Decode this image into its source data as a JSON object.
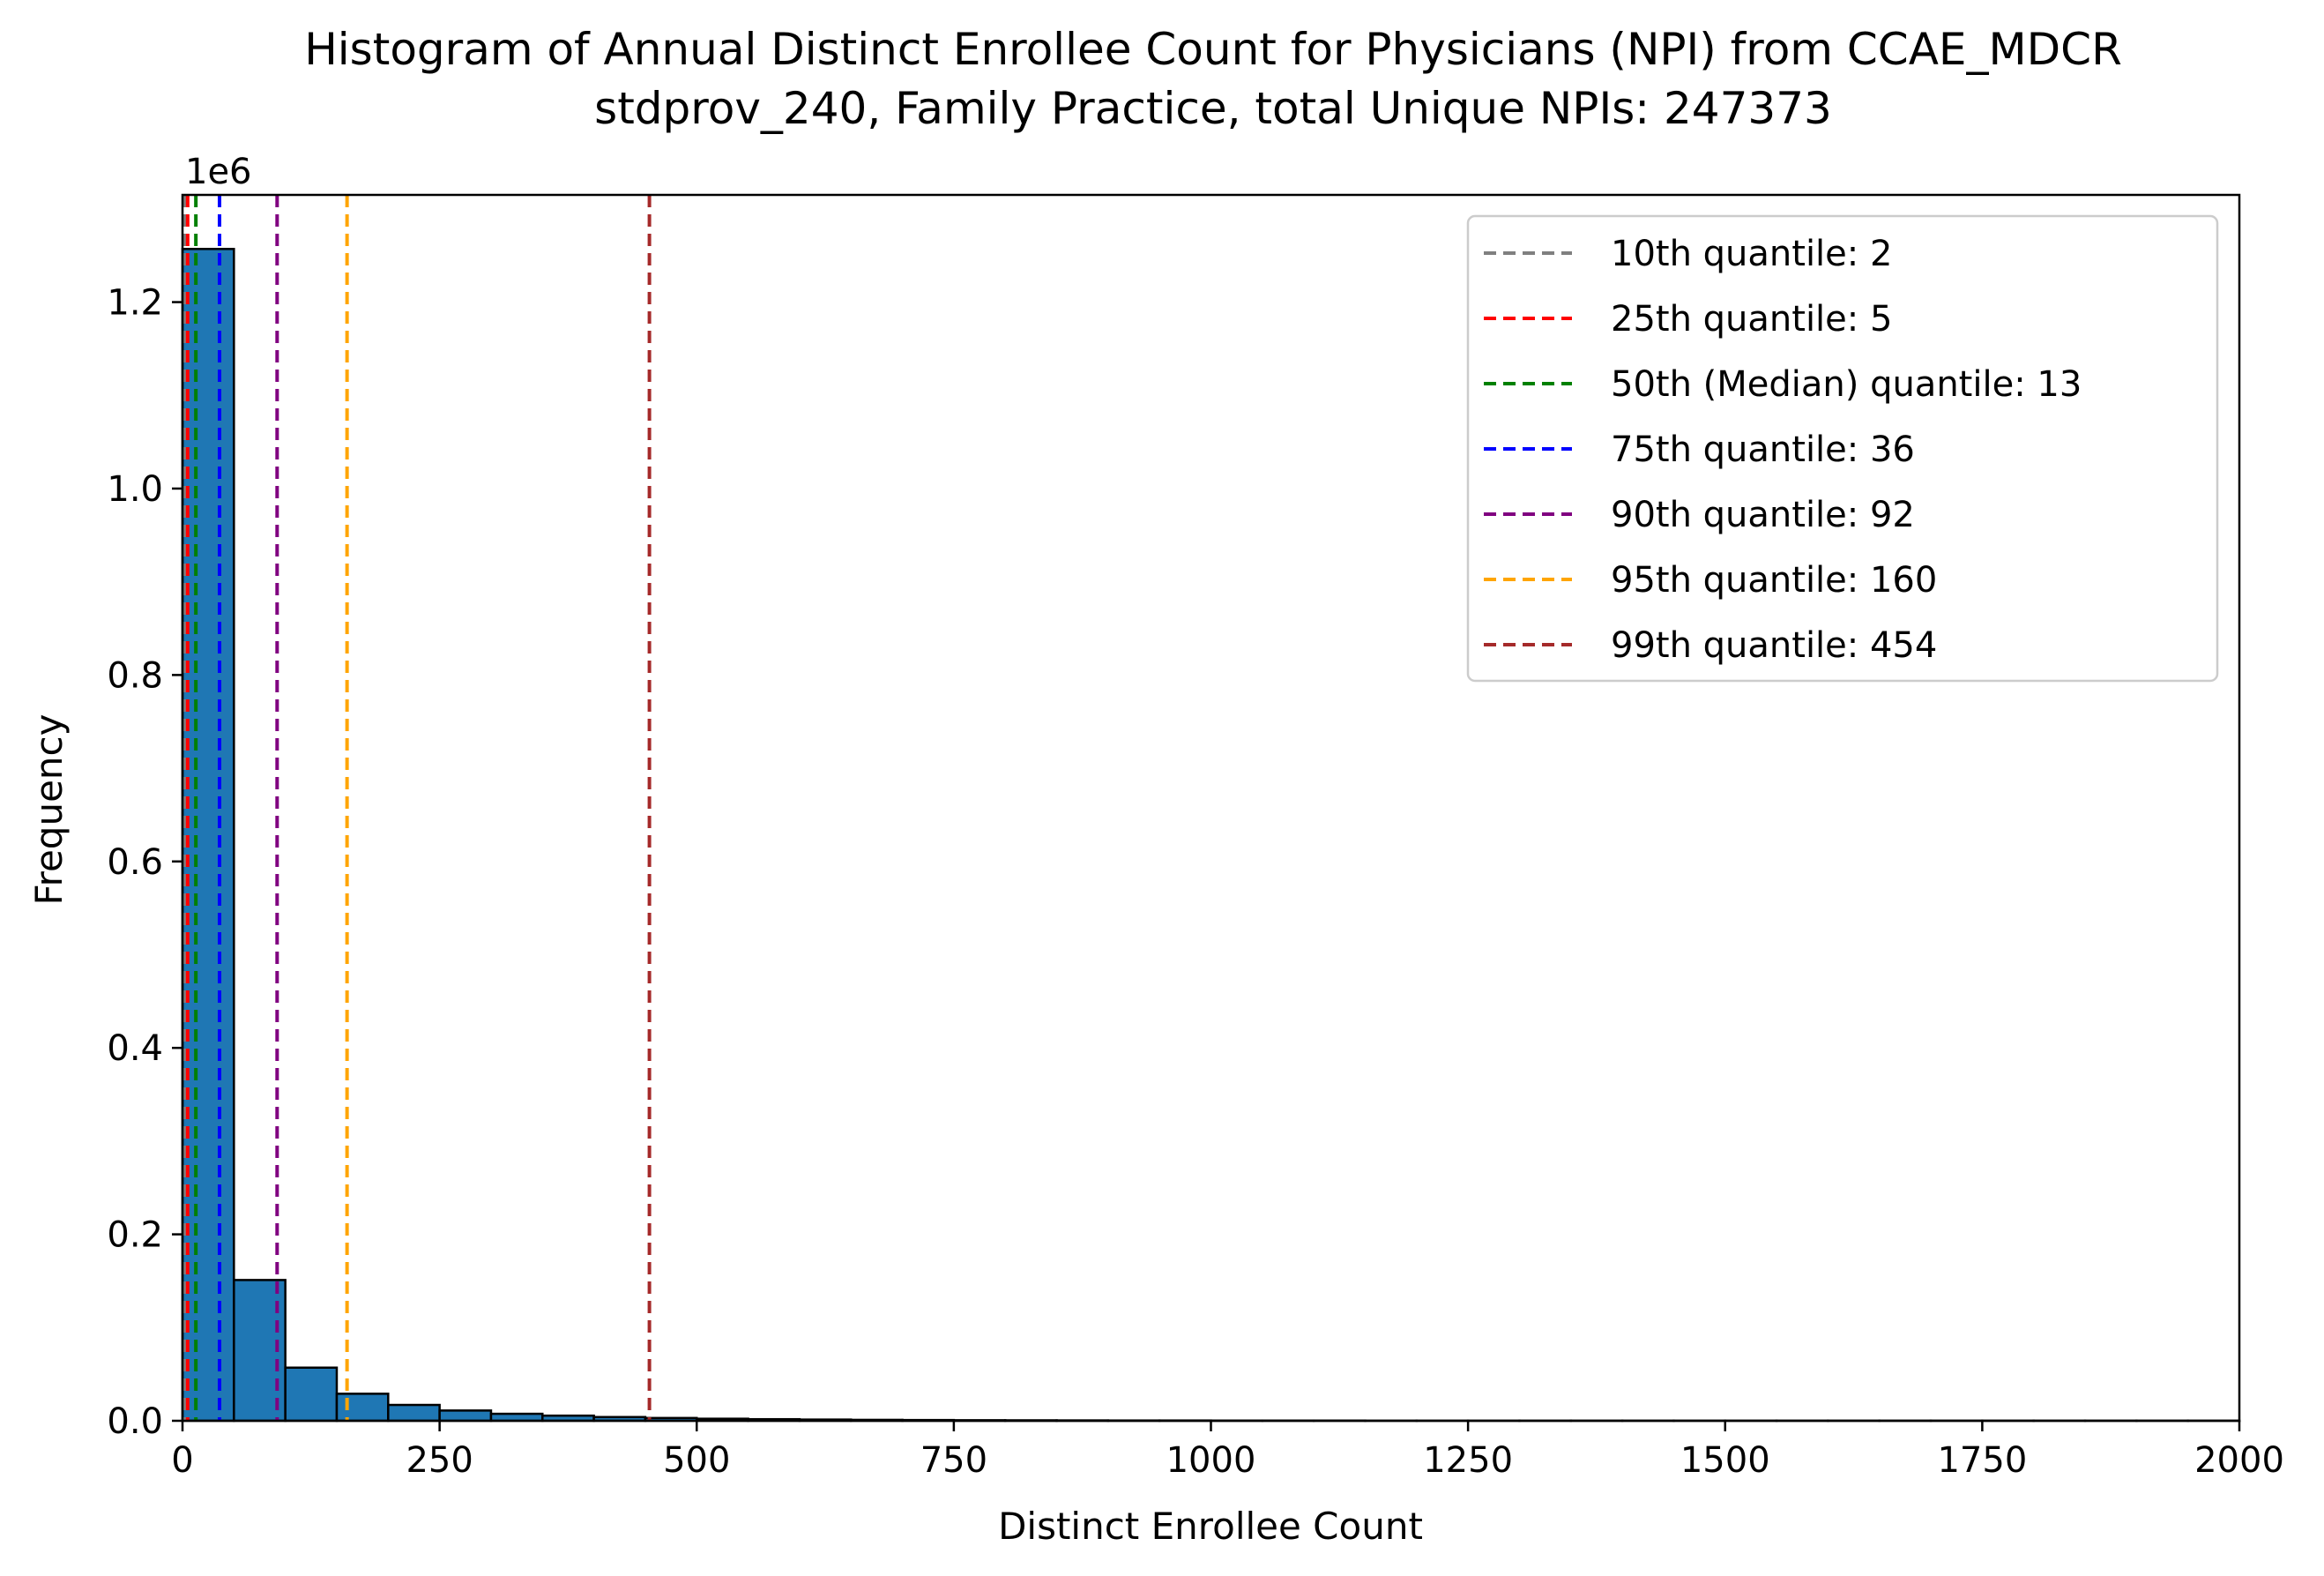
{
  "chart_data": {
    "type": "bar",
    "title_lines": [
      "Histogram of Annual Distinct Enrollee Count for Physicians (NPI) from CCAE_MDCR",
      "stdprov_240, Family Practice, total Unique NPIs: 247373"
    ],
    "xlabel": "Distinct Enrollee Count",
    "ylabel": "Frequency",
    "y_offset_label": "1e6",
    "xlim": [
      0,
      2000
    ],
    "ylim": [
      0,
      1.315
    ],
    "y_scale_factor": 1000000,
    "x_ticks": [
      0,
      250,
      500,
      750,
      1000,
      1250,
      1500,
      1750,
      2000
    ],
    "x_tick_labels": [
      "0",
      "250",
      "500",
      "750",
      "1000",
      "1250",
      "1500",
      "1750",
      "2000"
    ],
    "y_ticks": [
      0.0,
      0.2,
      0.4,
      0.6,
      0.8,
      1.0,
      1.2
    ],
    "y_tick_labels": [
      "0.0",
      "0.2",
      "0.4",
      "0.6",
      "0.8",
      "1.0",
      "1.2"
    ],
    "grid": false,
    "legend_position": "top-right",
    "bins": [
      {
        "x0": 0,
        "x1": 50,
        "value": 1.257
      },
      {
        "x0": 50,
        "x1": 100,
        "value": 0.151
      },
      {
        "x0": 100,
        "x1": 150,
        "value": 0.057
      },
      {
        "x0": 150,
        "x1": 200,
        "value": 0.029
      },
      {
        "x0": 200,
        "x1": 250,
        "value": 0.017
      },
      {
        "x0": 250,
        "x1": 300,
        "value": 0.011
      },
      {
        "x0": 300,
        "x1": 350,
        "value": 0.0075
      },
      {
        "x0": 350,
        "x1": 400,
        "value": 0.0055
      },
      {
        "x0": 400,
        "x1": 450,
        "value": 0.004
      },
      {
        "x0": 450,
        "x1": 500,
        "value": 0.003
      },
      {
        "x0": 500,
        "x1": 550,
        "value": 0.0022
      },
      {
        "x0": 550,
        "x1": 600,
        "value": 0.0017
      },
      {
        "x0": 600,
        "x1": 650,
        "value": 0.0013
      },
      {
        "x0": 650,
        "x1": 700,
        "value": 0.001
      },
      {
        "x0": 700,
        "x1": 750,
        "value": 0.0008
      },
      {
        "x0": 750,
        "x1": 800,
        "value": 0.0006
      },
      {
        "x0": 800,
        "x1": 850,
        "value": 0.0005
      },
      {
        "x0": 850,
        "x1": 900,
        "value": 0.0004
      },
      {
        "x0": 900,
        "x1": 950,
        "value": 0.0003
      },
      {
        "x0": 950,
        "x1": 1000,
        "value": 0.0003
      },
      {
        "x0": 1000,
        "x1": 1050,
        "value": 0.0002
      },
      {
        "x0": 1050,
        "x1": 1100,
        "value": 0.0002
      },
      {
        "x0": 1100,
        "x1": 1150,
        "value": 0.0002
      },
      {
        "x0": 1150,
        "x1": 1200,
        "value": 0.0001
      },
      {
        "x0": 1200,
        "x1": 1250,
        "value": 0.0001
      },
      {
        "x0": 1250,
        "x1": 1300,
        "value": 0.0001
      },
      {
        "x0": 1300,
        "x1": 1350,
        "value": 0.0001
      },
      {
        "x0": 1350,
        "x1": 1400,
        "value": 0.0001
      },
      {
        "x0": 1400,
        "x1": 1450,
        "value": 0.0001
      },
      {
        "x0": 1450,
        "x1": 1500,
        "value": 0.0001
      },
      {
        "x0": 1500,
        "x1": 1550,
        "value": 0.0001
      },
      {
        "x0": 1550,
        "x1": 1600,
        "value": 0.0001
      },
      {
        "x0": 1600,
        "x1": 1650,
        "value": 0.0001
      },
      {
        "x0": 1650,
        "x1": 1700,
        "value": 0.0001
      },
      {
        "x0": 1700,
        "x1": 1750,
        "value": 0.0001
      },
      {
        "x0": 1750,
        "x1": 1800,
        "value": 0.0001
      },
      {
        "x0": 1800,
        "x1": 1850,
        "value": 0.0001
      },
      {
        "x0": 1850,
        "x1": 1900,
        "value": 0.0001
      },
      {
        "x0": 1900,
        "x1": 1950,
        "value": 0.0001
      },
      {
        "x0": 1950,
        "x1": 2000,
        "value": 0.0001
      }
    ],
    "bar_color": "#1f77b4",
    "bar_edge_color": "#000000",
    "quantile_lines": [
      {
        "label": "10th quantile: 2",
        "x": 2,
        "color": "#808080"
      },
      {
        "label": "25th quantile: 5",
        "x": 5,
        "color": "#ff0000"
      },
      {
        "label": "50th (Median) quantile: 13",
        "x": 13,
        "color": "#008000"
      },
      {
        "label": "75th quantile: 36",
        "x": 36,
        "color": "#0000ff"
      },
      {
        "label": "90th quantile: 92",
        "x": 92,
        "color": "#800080"
      },
      {
        "label": "95th quantile: 160",
        "x": 160,
        "color": "#ffa500"
      },
      {
        "label": "99th quantile: 454",
        "x": 454,
        "color": "#a52a2a"
      }
    ]
  }
}
